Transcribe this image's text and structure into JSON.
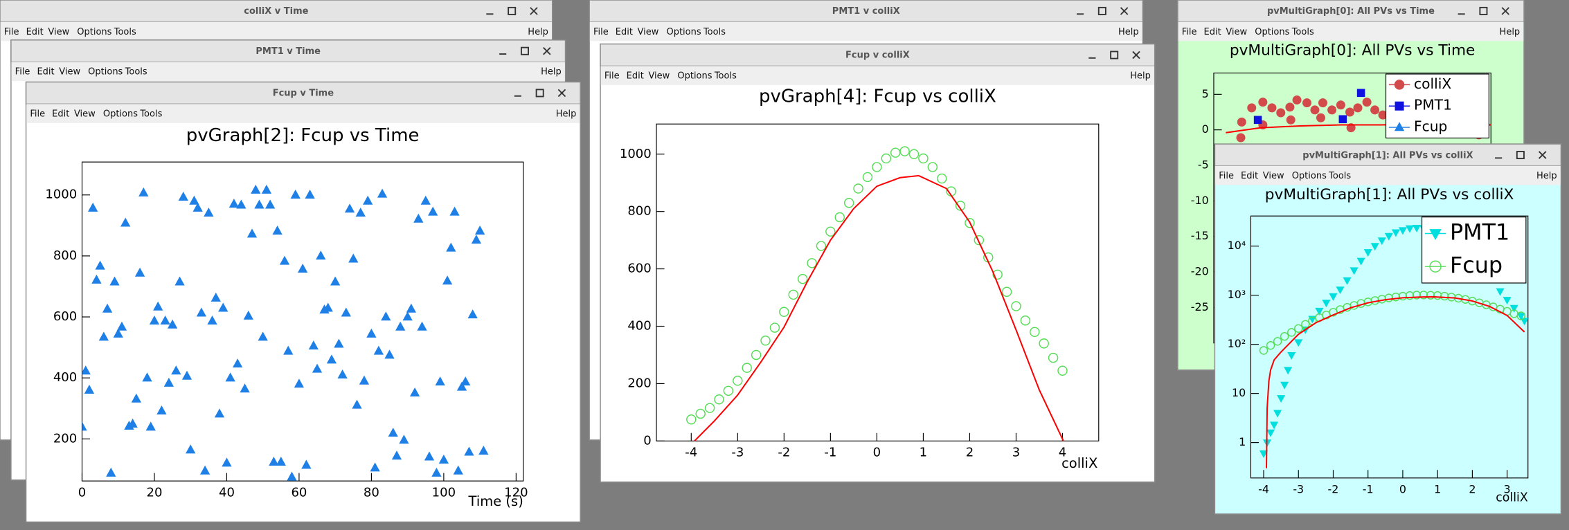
{
  "windows": [
    {
      "title": "colliX v Time",
      "menu": [
        "File",
        "Edit",
        "View",
        "Options",
        "Tools"
      ],
      "help": "Help"
    },
    {
      "title": "PMT1 v Time",
      "menu": [
        "File",
        "Edit",
        "View",
        "Options",
        "Tools"
      ],
      "help": "Help"
    },
    {
      "title": "Fcup v Time",
      "menu": [
        "File",
        "Edit",
        "View",
        "Options",
        "Tools"
      ],
      "help": "Help"
    },
    {
      "title": "PMT1 v colliX",
      "menu": [
        "File",
        "Edit",
        "View",
        "Options",
        "Tools"
      ],
      "help": "Help"
    },
    {
      "title": "Fcup v colliX",
      "menu": [
        "File",
        "Edit",
        "View",
        "Options",
        "Tools"
      ],
      "help": "Help"
    },
    {
      "title": "pvMultiGraph[0]: All PVs vs Time",
      "menu": [
        "File",
        "Edit",
        "View",
        "Options",
        "Tools"
      ],
      "help": "Help"
    },
    {
      "title": "pvMultiGraph[1]: All PVs vs colliX",
      "menu": [
        "File",
        "Edit",
        "View",
        "Options",
        "Tools"
      ],
      "help": "Help"
    }
  ],
  "chart_data": [
    {
      "type": "scatter",
      "title": "pvGraph[2]: Fcup vs Time",
      "x_label": "Time (s)",
      "xlim": [
        0,
        122
      ],
      "ylim": [
        62,
        1108
      ],
      "xticks": [
        0,
        20,
        40,
        60,
        80,
        100,
        120
      ],
      "yticks": [
        200,
        400,
        600,
        800,
        1000
      ],
      "series": [
        {
          "color": "#1e7fe6",
          "marker": "triangle",
          "x": [
            0,
            1,
            2,
            3,
            4,
            5,
            6,
            7,
            8,
            9,
            10,
            11,
            12,
            13,
            14,
            15,
            16,
            17,
            18,
            19,
            20,
            21,
            22,
            23,
            24,
            25,
            26,
            27,
            28,
            29,
            30,
            31,
            32,
            33,
            34,
            35,
            36,
            37,
            38,
            39,
            40,
            41,
            42,
            43,
            44,
            45,
            46,
            47,
            48,
            49,
            50,
            51,
            52,
            53,
            54,
            55,
            56,
            57,
            58,
            59,
            60,
            61,
            62,
            63,
            64,
            65,
            66,
            67,
            68,
            69,
            70,
            71,
            72,
            73,
            74,
            75,
            76,
            77,
            78,
            79,
            80,
            81,
            82,
            83,
            84,
            85,
            86,
            87,
            88,
            89,
            90,
            91,
            92,
            93,
            94,
            95,
            96,
            97,
            98,
            99,
            100,
            101,
            102,
            103,
            104,
            105,
            106,
            107,
            108,
            109,
            110,
            111
          ],
          "values": [
            239,
            423,
            360,
            957,
            721,
            767,
            534,
            626,
            88,
            715,
            544,
            567,
            908,
            242,
            249,
            331,
            744,
            1007,
            400,
            239,
            587,
            633,
            292,
            587,
            383,
            574,
            423,
            715,
            993,
            406,
            164,
            980,
            957,
            613,
            95,
            941,
            587,
            662,
            282,
            629,
            121,
            400,
            970,
            446,
            967,
            364,
            603,
            872,
            1016,
            967,
            534,
            1016,
            967,
            124,
            882,
            124,
            783,
            488,
            75,
            1000,
            380,
            757,
            114,
            1000,
            505,
            429,
            800,
            623,
            629,
            459,
            715,
            511,
            410,
            613,
            954,
            790,
            311,
            941,
            390,
            980,
            544,
            105,
            488,
            1003,
            600,
            475,
            219,
            144,
            567,
            196,
            600,
            626,
            351,
            921,
            567,
            980,
            141,
            944,
            88,
            387,
            131,
            718,
            826,
            944,
            95,
            370,
            387,
            157,
            607,
            852,
            882,
            160
          ]
        }
      ]
    },
    {
      "type": "scatter",
      "title": "pvGraph[4]: Fcup vs colliX",
      "x_label": "colliX",
      "xlim": [
        -4.75,
        4.78
      ],
      "ylim": [
        0,
        1105
      ],
      "xticks": [
        -4,
        -3,
        -2,
        -1,
        0,
        1,
        2,
        3,
        4
      ],
      "yticks": [
        0,
        200,
        400,
        600,
        800,
        1000
      ],
      "series": [
        {
          "color": "#55dd55",
          "marker": "open-circle",
          "x": [
            -4.0,
            -3.8,
            -3.6,
            -3.4,
            -3.2,
            -3.0,
            -2.8,
            -2.6,
            -2.4,
            -2.2,
            -2.0,
            -1.8,
            -1.6,
            -1.4,
            -1.2,
            -1.0,
            -0.8,
            -0.6,
            -0.4,
            -0.2,
            0,
            0.2,
            0.4,
            0.6,
            0.8,
            1.0,
            1.2,
            1.4,
            1.6,
            1.8,
            2.0,
            2.2,
            2.4,
            2.6,
            2.8,
            3.0,
            3.2,
            3.4,
            3.6,
            3.8,
            4.0
          ],
          "values": [
            75,
            95,
            115,
            145,
            175,
            210,
            255,
            300,
            350,
            395,
            450,
            510,
            565,
            620,
            680,
            730,
            780,
            830,
            880,
            920,
            955,
            985,
            1005,
            1010,
            1000,
            985,
            955,
            915,
            870,
            820,
            760,
            700,
            640,
            580,
            520,
            470,
            420,
            380,
            340,
            290,
            245
          ]
        },
        {
          "color": "#ff0000",
          "line": true,
          "x": [
            -3.93,
            -3.5,
            -3,
            -2.5,
            -2,
            -1.5,
            -1,
            -0.5,
            0,
            0.5,
            0.9,
            1.5,
            2,
            2.5,
            3,
            3.5,
            4.02
          ],
          "values": [
            0,
            70,
            160,
            275,
            397,
            555,
            700,
            810,
            888,
            918,
            925,
            880,
            763,
            590,
            387,
            178,
            0
          ]
        }
      ]
    },
    {
      "type": "scatter",
      "title": "pvMultiGraph[0]: All PVs vs Time",
      "xlim": [
        0,
        122
      ],
      "ylim": [
        -30,
        8
      ],
      "yticks": [
        5,
        0,
        -5,
        -10,
        -15,
        -20,
        -25
      ],
      "legend": "upper right",
      "series": [
        {
          "name": "colliX",
          "color": "#d24a4a",
          "marker": "circle",
          "x": [
            11.9,
            12.3,
            16.7,
            21.6,
            21.6,
            25.6,
            29.5,
            33.5,
            33.9,
            36.6,
            41.0,
            44.5,
            47.1,
            48.0,
            52.0,
            55.9,
            59.9,
            60.4,
            63.4,
            67.4,
            70.9,
            74.4,
            116.7,
            119.4
          ],
          "values": [
            -1.1,
            1.1,
            3.1,
            3.9,
            0.7,
            3.1,
            2.4,
            3.2,
            1.4,
            4.2,
            3.8,
            2.8,
            1.7,
            3.8,
            2.8,
            3.5,
            2.5,
            0.3,
            3.1,
            3.9,
            2.8,
            2.1,
            -0.7,
            0.7
          ]
        },
        {
          "name": "PMT1",
          "color": "#1010e0",
          "marker": "square",
          "x": [
            19.4,
            56.8,
            64.8
          ],
          "values": [
            1.4,
            1.5,
            5.2
          ]
        },
        {
          "name": "Fcup",
          "color": "#1e7fe6",
          "marker": "triangle",
          "x": [],
          "values": []
        },
        {
          "color": "#ff0000",
          "line": true,
          "x": [
            5.3,
            20.7,
            38,
            56,
            73.6,
            91,
            109,
            122
          ],
          "values": [
            -0.4,
            0.3,
            0.55,
            0.7,
            0.7,
            0.8,
            0.8,
            0.7
          ]
        }
      ]
    },
    {
      "type": "scatter",
      "title": "pvMultiGraph[1]: All PVs vs colliX",
      "x_label": "colliX",
      "log_y": true,
      "xlim": [
        -4.37,
        3.6
      ],
      "ylim": [
        0.19,
        41000
      ],
      "xticks": [
        -4,
        -3,
        -2,
        -1,
        0,
        1,
        2,
        3
      ],
      "yticks": [
        1,
        10,
        {
          "value": 100,
          "label": "10²"
        },
        {
          "value": 1000,
          "label": "10³"
        },
        {
          "value": 10000,
          "label": "10⁴"
        }
      ],
      "legend": "upper right",
      "series": [
        {
          "name": "PMT1",
          "color": "#00dede",
          "marker": "triangle-down",
          "x": [
            -4.0,
            -3.9,
            -3.8,
            -3.7,
            -3.6,
            -3.5,
            -3.4,
            -3.3,
            -3.2,
            -3.0,
            -2.8,
            -2.6,
            -2.4,
            -2.2,
            -2.0,
            -1.8,
            -1.6,
            -1.4,
            -1.2,
            -1.0,
            -0.8,
            -0.6,
            -0.4,
            -0.2,
            0,
            0.2,
            0.4,
            0.6,
            1.0,
            1.5,
            2.0,
            2.5,
            2.8,
            3.0,
            3.2,
            3.4,
            3.5
          ],
          "values": [
            0.6,
            1.0,
            1.6,
            2.3,
            4,
            8,
            15,
            30,
            60,
            110,
            200,
            330,
            480,
            700,
            950,
            1300,
            2000,
            3200,
            5000,
            7500,
            10000,
            13000,
            16000,
            19000,
            21000,
            23000,
            23500,
            23000,
            20000,
            12000,
            6000,
            2500,
            1200,
            800,
            550,
            380,
            300
          ]
        },
        {
          "name": "Fcup",
          "color": "#55dd55",
          "marker": "open-circle",
          "x": [
            -4.0,
            -3.8,
            -3.6,
            -3.4,
            -3.2,
            -3.0,
            -2.8,
            -2.6,
            -2.4,
            -2.2,
            -2.0,
            -1.8,
            -1.6,
            -1.4,
            -1.2,
            -1.0,
            -0.8,
            -0.6,
            -0.4,
            -0.2,
            0,
            0.2,
            0.4,
            0.6,
            0.8,
            1.0,
            1.2,
            1.4,
            1.6,
            1.8,
            2.0,
            2.2,
            2.4,
            2.6,
            2.8,
            3.0,
            3.2,
            3.4
          ],
          "values": [
            75,
            95,
            115,
            145,
            175,
            210,
            255,
            300,
            350,
            395,
            450,
            510,
            565,
            620,
            680,
            730,
            780,
            830,
            880,
            920,
            955,
            985,
            1005,
            1010,
            1000,
            985,
            955,
            915,
            870,
            820,
            760,
            700,
            640,
            580,
            520,
            470,
            420,
            380
          ]
        },
        {
          "color": "#ff0000",
          "line": true,
          "x": [
            -3.92,
            -3.9,
            -3.85,
            -3.8,
            -3.7,
            -3.5,
            -3,
            -2.5,
            -2,
            -1.5,
            -1,
            -0.5,
            0,
            0.5,
            0.9,
            1.5,
            2,
            2.5,
            3,
            3.5
          ],
          "values": [
            0.3,
            5,
            18,
            30,
            48,
            70,
            160,
            275,
            397,
            555,
            700,
            810,
            888,
            918,
            925,
            880,
            763,
            590,
            387,
            178
          ]
        }
      ]
    }
  ]
}
